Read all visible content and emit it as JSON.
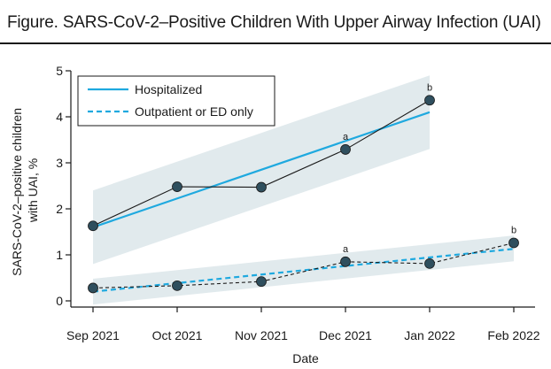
{
  "figure": {
    "title": "Figure. SARS-CoV-2–Positive Children With Upper Airway Infection (UAI)"
  },
  "colors": {
    "fit_line": "#1fa9df",
    "confidence_band": "#c9d8df",
    "observed_line": "#1a1a1a",
    "marker_fill": "#2f4f5e",
    "axis": "#1a1a1a"
  },
  "chart_data": {
    "type": "line",
    "x": [
      "Sep 2021",
      "Oct 2021",
      "Nov 2021",
      "Dec 2021",
      "Jan 2022",
      "Feb 2022"
    ],
    "xlabel": "Date",
    "ylabel_lines": [
      "SARS-CoV-2–positive children",
      "with UAI, %"
    ],
    "ylim": [
      0,
      5
    ],
    "yticks": [
      0,
      1,
      2,
      3,
      4,
      5
    ],
    "grid": false,
    "legend": {
      "placement": "top-left",
      "entries": [
        {
          "label": "Hospitalized",
          "style": "solid"
        },
        {
          "label": "Outpatient or ED only",
          "style": "dashed"
        }
      ]
    },
    "groups": [
      {
        "label": "Hospitalized",
        "observed": [
          1.63,
          2.48,
          2.47,
          3.29,
          4.36,
          null
        ],
        "fit": {
          "x_index": [
            0,
            4
          ],
          "values": [
            1.6,
            4.1
          ]
        },
        "ci": {
          "x_index": [
            0,
            4
          ],
          "lower": [
            0.8,
            3.3
          ],
          "upper": [
            2.4,
            4.9
          ]
        },
        "line_style": "solid",
        "annotations": [
          {
            "x_index": 3,
            "y": 3.29,
            "text": "a"
          },
          {
            "x_index": 4,
            "y": 4.36,
            "text": "b"
          }
        ]
      },
      {
        "label": "Outpatient or ED only",
        "observed": [
          0.28,
          0.33,
          0.42,
          0.85,
          0.81,
          1.26
        ],
        "fit": {
          "x_index": [
            0,
            5
          ],
          "values": [
            0.2,
            1.13
          ]
        },
        "ci": {
          "x_index": [
            0,
            5
          ],
          "lower": [
            -0.08,
            0.86
          ],
          "upper": [
            0.48,
            1.42
          ]
        },
        "line_style": "dashed",
        "annotations": [
          {
            "x_index": 3,
            "y": 0.85,
            "text": "a"
          },
          {
            "x_index": 5,
            "y": 1.26,
            "text": "b"
          }
        ]
      }
    ]
  }
}
